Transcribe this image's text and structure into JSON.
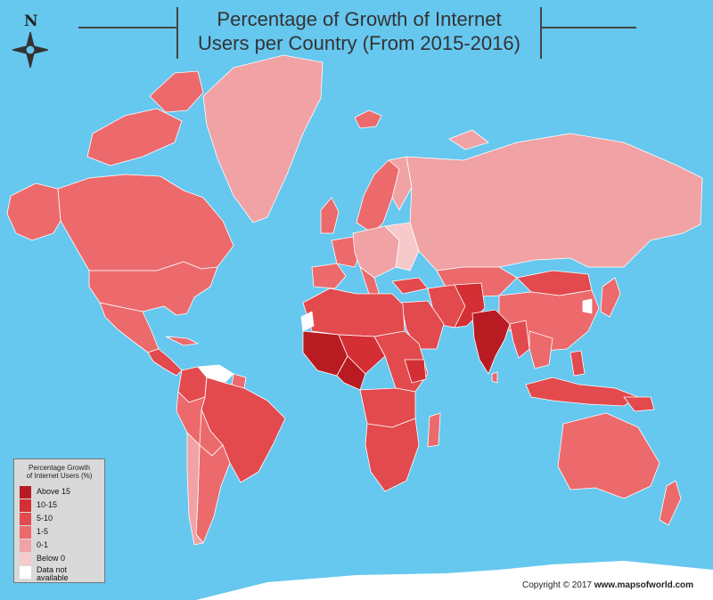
{
  "title": {
    "line1": "Percentage of Growth of Internet",
    "line2": "Users per Country (From 2015-2016)"
  },
  "compass": {
    "letter": "N",
    "icon": "compass-rose-icon"
  },
  "legend": {
    "title_line1": "Percentage Growth",
    "title_line2": "of Internet Users (%)",
    "items": [
      {
        "label": "Above 15",
        "color": "#b81c22"
      },
      {
        "label": "10-15",
        "color": "#d32f34"
      },
      {
        "label": "5-10",
        "color": "#e24a4d"
      },
      {
        "label": "1-5",
        "color": "#ec6a6c"
      },
      {
        "label": "0-1",
        "color": "#f0a2a4"
      },
      {
        "label": "Below 0",
        "color": "#f6c9ca"
      },
      {
        "label": "Data not",
        "label2": "available",
        "color": "#ffffff"
      }
    ]
  },
  "copyright": {
    "prefix": "Copyright © 2017",
    "site": "www.mapsofworld.com"
  },
  "colors": {
    "ocean": "#66c7ef",
    "border": "#ffffff",
    "ice": "#ffffff"
  }
}
